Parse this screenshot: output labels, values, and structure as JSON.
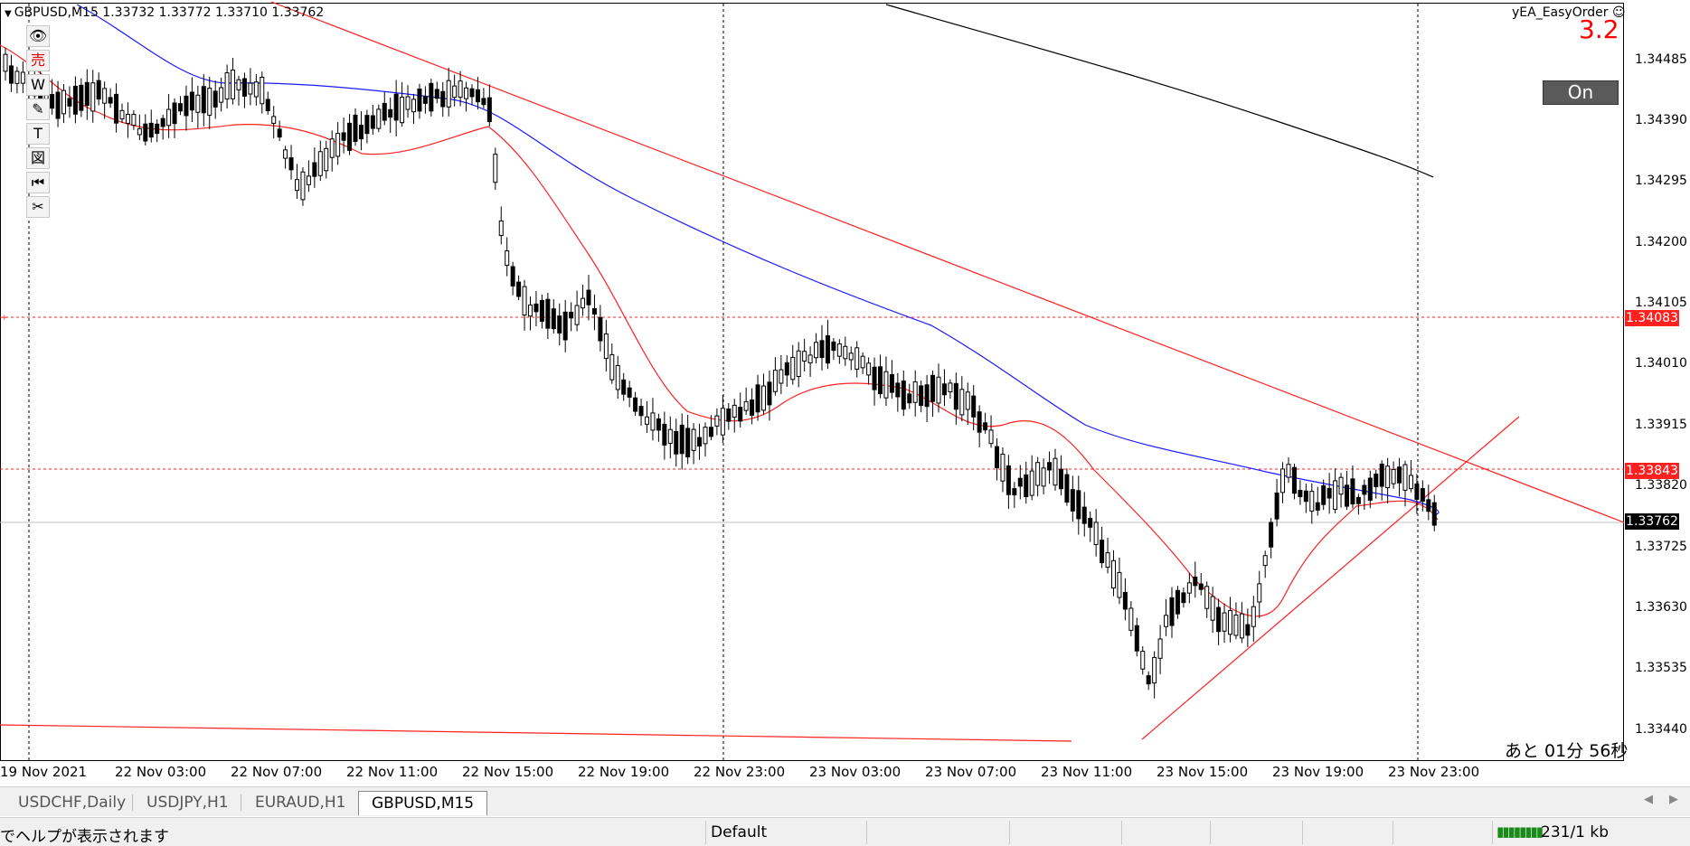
{
  "window": {
    "symbol_line": "GBPUSD,M15  1.33732 1.33772 1.33710 1.33762"
  },
  "toolbar": {
    "items": [
      {
        "name": "eye-icon",
        "glyph": "👁"
      },
      {
        "name": "sell-icon",
        "glyph": "売"
      },
      {
        "name": "w-icon",
        "glyph": "W"
      },
      {
        "name": "pencil-icon",
        "glyph": "✎"
      },
      {
        "name": "text-icon",
        "glyph": "T"
      },
      {
        "name": "chart-icon",
        "glyph": "図"
      },
      {
        "name": "skip-back-icon",
        "glyph": "⏮"
      },
      {
        "name": "scissors-icon",
        "glyph": "✂"
      }
    ]
  },
  "ea": {
    "name": "yEA_EasyOrder ☺",
    "version": "3.2",
    "toggle_label": "On"
  },
  "countdown": "あと 01分 56秒",
  "price_axis": {
    "ticks": [
      "1.34485",
      "1.34390",
      "1.34295",
      "1.34200",
      "1.34105",
      "1.34010",
      "1.33915",
      "1.33820",
      "1.33725",
      "1.33630",
      "1.33535",
      "1.33440"
    ],
    "level_tags": [
      {
        "value": "1.34083",
        "color": "#ff2020"
      },
      {
        "value": "1.33843",
        "color": "#ff2020"
      },
      {
        "value": "1.33762",
        "color": "#000000"
      }
    ]
  },
  "time_axis": {
    "labels": [
      "19 Nov 2021",
      "22 Nov 03:00",
      "22 Nov 07:00",
      "22 Nov 11:00",
      "22 Nov 15:00",
      "22 Nov 19:00",
      "22 Nov 23:00",
      "23 Nov 03:00",
      "23 Nov 07:00",
      "23 Nov 11:00",
      "23 Nov 15:00",
      "23 Nov 19:00",
      "23 Nov 23:00"
    ]
  },
  "tabs": [
    {
      "label": "USDCHF,Daily",
      "active": false
    },
    {
      "label": "USDJPY,H1",
      "active": false
    },
    {
      "label": "EURAUD,H1",
      "active": false
    },
    {
      "label": "GBPUSD,M15",
      "active": true
    }
  ],
  "status": {
    "help": "でヘルプが表示されます",
    "profile": "Default",
    "traffic": "231/1 kb"
  },
  "colors": {
    "ma_fast": "#ff2020",
    "ma_mid": "#1a1aff",
    "ma_slow": "#000000",
    "trendline": "#ff2020",
    "level_line": "#ff2020"
  }
}
